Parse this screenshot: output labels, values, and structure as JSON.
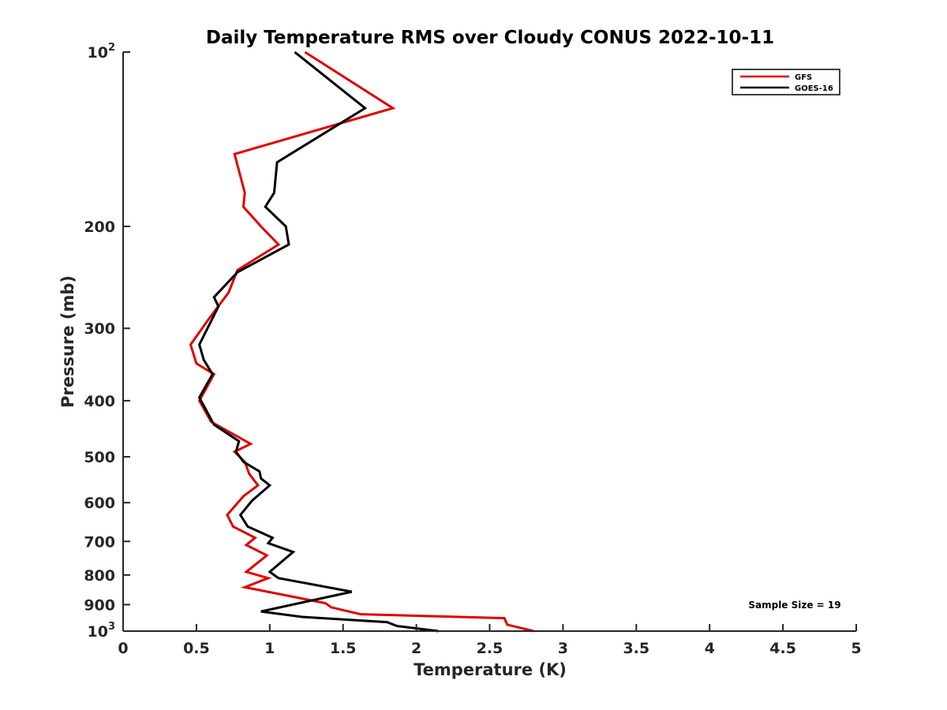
{
  "chart_data": {
    "type": "line",
    "title": "Daily Temperature RMS over Cloudy CONUS 2022-10-11",
    "xlabel": "Temperature (K)",
    "ylabel": "Pressure (mb)",
    "xlim": [
      0,
      5
    ],
    "ylim": [
      100,
      1000
    ],
    "y_scale": "log",
    "y_reversed": true,
    "x_ticks": [
      "0",
      "0.5",
      "1",
      "1.5",
      "2",
      "2.5",
      "3",
      "3.5",
      "4",
      "4.5",
      "5"
    ],
    "y_ticks": [
      {
        "value": 100,
        "base": "10",
        "exp": "2"
      },
      {
        "value": 200,
        "label": "200"
      },
      {
        "value": 300,
        "label": "300"
      },
      {
        "value": 400,
        "label": "400"
      },
      {
        "value": 500,
        "label": "500"
      },
      {
        "value": 600,
        "label": "600"
      },
      {
        "value": 700,
        "label": "700"
      },
      {
        "value": 800,
        "label": "800"
      },
      {
        "value": 900,
        "label": "900"
      },
      {
        "value": 1000,
        "base": "10",
        "exp": "3"
      }
    ],
    "grid": false,
    "legend_position": "top-right",
    "annotation": "Sample Size = 19",
    "series": [
      {
        "name": "GFS",
        "color": "#e00000",
        "points": [
          [
            1.24,
            100
          ],
          [
            1.84,
            125
          ],
          [
            0.76,
            150
          ],
          [
            0.83,
            175
          ],
          [
            0.82,
            185
          ],
          [
            0.94,
            200
          ],
          [
            1.06,
            215
          ],
          [
            0.78,
            238
          ],
          [
            0.72,
            260
          ],
          [
            0.58,
            290
          ],
          [
            0.46,
            320
          ],
          [
            0.5,
            345
          ],
          [
            0.62,
            360
          ],
          [
            0.52,
            400
          ],
          [
            0.6,
            435
          ],
          [
            0.87,
            475
          ],
          [
            0.76,
            490
          ],
          [
            0.83,
            510
          ],
          [
            0.86,
            535
          ],
          [
            0.92,
            560
          ],
          [
            0.82,
            585
          ],
          [
            0.71,
            630
          ],
          [
            0.75,
            660
          ],
          [
            0.9,
            690
          ],
          [
            0.84,
            710
          ],
          [
            0.98,
            740
          ],
          [
            0.84,
            790
          ],
          [
            0.99,
            810
          ],
          [
            0.83,
            840
          ],
          [
            1.38,
            895
          ],
          [
            1.42,
            910
          ],
          [
            1.62,
            935
          ],
          [
            2.6,
            950
          ],
          [
            2.62,
            975
          ],
          [
            2.8,
            1000
          ]
        ]
      },
      {
        "name": "GOES-16",
        "color": "#000000",
        "points": [
          [
            1.17,
            100
          ],
          [
            1.65,
            125
          ],
          [
            1.05,
            155
          ],
          [
            1.03,
            175
          ],
          [
            0.97,
            185
          ],
          [
            1.11,
            200
          ],
          [
            1.13,
            215
          ],
          [
            0.78,
            240
          ],
          [
            0.62,
            265
          ],
          [
            0.65,
            275
          ],
          [
            0.52,
            320
          ],
          [
            0.55,
            340
          ],
          [
            0.61,
            360
          ],
          [
            0.52,
            395
          ],
          [
            0.62,
            440
          ],
          [
            0.79,
            470
          ],
          [
            0.77,
            490
          ],
          [
            0.82,
            510
          ],
          [
            0.93,
            530
          ],
          [
            0.94,
            545
          ],
          [
            1.0,
            560
          ],
          [
            0.88,
            595
          ],
          [
            0.8,
            630
          ],
          [
            0.85,
            660
          ],
          [
            1.02,
            690
          ],
          [
            0.99,
            705
          ],
          [
            1.16,
            730
          ],
          [
            1.0,
            790
          ],
          [
            1.06,
            810
          ],
          [
            1.56,
            855
          ],
          [
            0.94,
            925
          ],
          [
            1.22,
            945
          ],
          [
            1.8,
            965
          ],
          [
            1.87,
            980
          ],
          [
            2.15,
            1000
          ]
        ]
      }
    ]
  }
}
